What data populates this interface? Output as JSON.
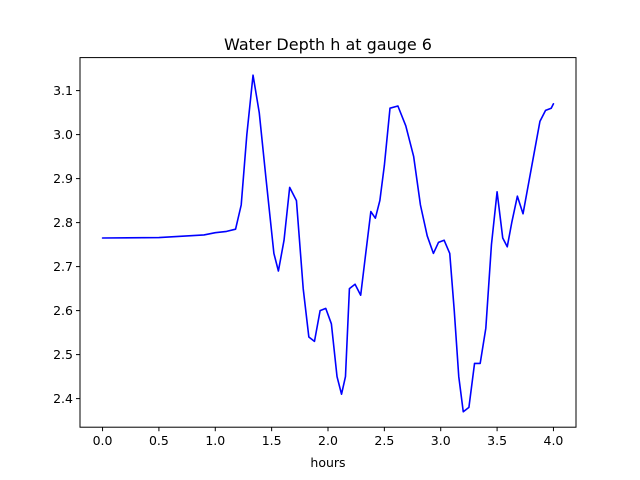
{
  "chart_data": {
    "type": "line",
    "title": "Water Depth h at gauge 6",
    "xlabel": "hours",
    "ylabel": "",
    "xlim": [
      -0.2,
      4.2
    ],
    "ylim": [
      2.335,
      3.175
    ],
    "xticks": [
      0.0,
      0.5,
      1.0,
      1.5,
      2.0,
      2.5,
      3.0,
      3.5,
      4.0
    ],
    "xtick_labels": [
      "0.0",
      "0.5",
      "1.0",
      "1.5",
      "2.0",
      "2.5",
      "3.0",
      "3.5",
      "4.0"
    ],
    "yticks": [
      2.4,
      2.5,
      2.6,
      2.7,
      2.8,
      2.9,
      3.0,
      3.1
    ],
    "ytick_labels": [
      "2.4",
      "2.5",
      "2.6",
      "2.7",
      "2.8",
      "2.9",
      "3.0",
      "3.1"
    ],
    "grid": false,
    "series": [
      {
        "name": "",
        "color": "#0000ff",
        "x": [
          0.0,
          0.5,
          0.9,
          1.0,
          1.1,
          1.18,
          1.23,
          1.28,
          1.335,
          1.39,
          1.45,
          1.52,
          1.56,
          1.61,
          1.66,
          1.72,
          1.78,
          1.83,
          1.88,
          1.93,
          1.98,
          2.03,
          2.08,
          2.12,
          2.155,
          2.19,
          2.24,
          2.29,
          2.33,
          2.38,
          2.42,
          2.46,
          2.5,
          2.55,
          2.62,
          2.69,
          2.76,
          2.82,
          2.88,
          2.935,
          2.98,
          3.03,
          3.08,
          3.12,
          3.16,
          3.2,
          3.25,
          3.3,
          3.35,
          3.4,
          3.45,
          3.5,
          3.55,
          3.59,
          3.63,
          3.68,
          3.73,
          3.78,
          3.83,
          3.88,
          3.93,
          3.98,
          4.0
        ],
        "y": [
          2.765,
          2.766,
          2.772,
          2.777,
          2.78,
          2.785,
          2.84,
          3.0,
          3.135,
          3.05,
          2.9,
          2.73,
          2.69,
          2.76,
          2.88,
          2.85,
          2.65,
          2.54,
          2.53,
          2.6,
          2.605,
          2.57,
          2.45,
          2.41,
          2.45,
          2.65,
          2.66,
          2.635,
          2.72,
          2.825,
          2.81,
          2.85,
          2.93,
          3.06,
          3.065,
          3.02,
          2.95,
          2.84,
          2.77,
          2.73,
          2.755,
          2.76,
          2.73,
          2.6,
          2.45,
          2.37,
          2.38,
          2.48,
          2.48,
          2.56,
          2.75,
          2.87,
          2.765,
          2.745,
          2.8,
          2.86,
          2.82,
          2.89,
          2.96,
          3.03,
          3.055,
          3.06,
          3.07
        ]
      }
    ]
  }
}
